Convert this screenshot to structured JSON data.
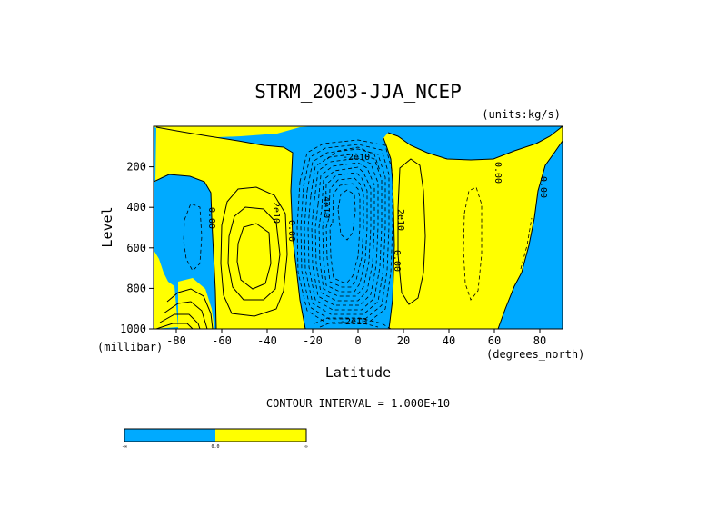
{
  "chart_data": {
    "type": "contour",
    "title": "STRM_2003-JJA_NCEP",
    "units": "(units:kg/s)",
    "xlabel": "Latitude",
    "xunit": "(degrees_north)",
    "ylabel": "Level",
    "yunit": "(millibar)",
    "xlim": [
      -90,
      90
    ],
    "ylim": [
      1000,
      0
    ],
    "x_ticks": [
      -80,
      -60,
      -40,
      -20,
      0,
      20,
      40,
      60,
      80
    ],
    "y_ticks": [
      200,
      400,
      600,
      800,
      1000
    ],
    "contour_interval_text": "CONTOUR INTERVAL = 1.000E+10",
    "contour_labels": [
      {
        "text": "0.00",
        "lat": -66,
        "lev": 310
      },
      {
        "text": "2e10",
        "lat": -37,
        "lev": 450
      },
      {
        "text": "0.00",
        "lat": -30,
        "lev": 540
      },
      {
        "text": "-4e10",
        "lat": -14,
        "lev": 330
      },
      {
        "text": "-2e10",
        "lat": -2,
        "lev": 240
      },
      {
        "text": "2e10",
        "lat": 20,
        "lev": 480
      },
      {
        "text": "0.00",
        "lat": 18,
        "lev": 650
      },
      {
        "text": "0.00",
        "lat": 62,
        "lev": 200
      },
      {
        "text": "0.00",
        "lat": 82,
        "lev": 310
      },
      {
        "text": "-2e10",
        "lat": -2,
        "lev": 975
      }
    ],
    "colorbar": {
      "colors": [
        "#00aaff",
        "#ffff00"
      ],
      "tick_labels": [
        "-∞",
        "0.0",
        "∞"
      ]
    },
    "colors": {
      "negative": "#00aaff",
      "positive": "#ffff00",
      "line": "#000000"
    }
  }
}
